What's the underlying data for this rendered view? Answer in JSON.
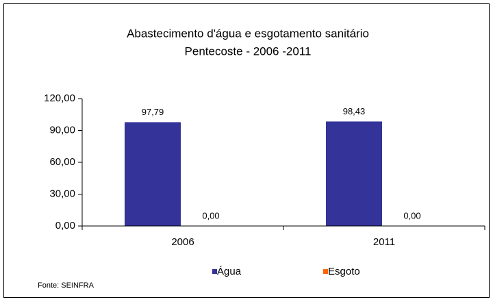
{
  "chart_data": {
    "type": "bar",
    "title": [
      "Abastecimento d'água e esgotamento sanitário",
      "Pentecoste - 2006 -2011"
    ],
    "categories": [
      "2006",
      "2011"
    ],
    "series": [
      {
        "name": "Água",
        "color": "#333399",
        "values": [
          97.79,
          98.43
        ],
        "value_labels": [
          "97,79",
          "98,43"
        ]
      },
      {
        "name": "Esgoto",
        "color": "#ff6600",
        "values": [
          0,
          0
        ],
        "value_labels": [
          "0,00",
          "0,00"
        ]
      }
    ],
    "ylim": [
      0,
      120
    ],
    "yticks": [
      {
        "value": 0,
        "label": "0,00"
      },
      {
        "value": 30,
        "label": "30,00"
      },
      {
        "value": 60,
        "label": "60,00"
      },
      {
        "value": 90,
        "label": "90,00"
      },
      {
        "value": 120,
        "label": "120,00"
      }
    ],
    "legend": "bottom",
    "source": "Fonte: SEINFRA"
  }
}
